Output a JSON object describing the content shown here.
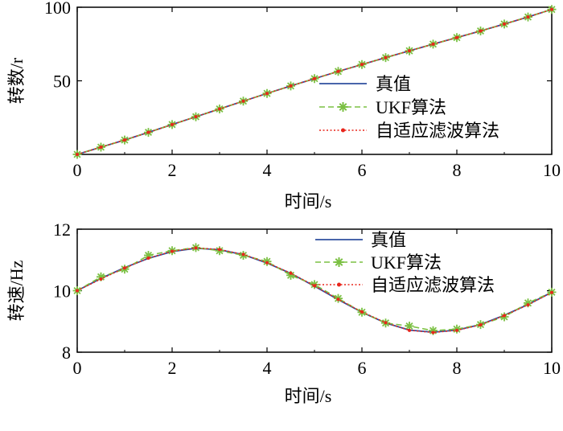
{
  "colors": {
    "true_value": "#2f4f9f",
    "ukf": "#7bc043",
    "adaptive": "#e8261c"
  },
  "chart_data": [
    {
      "type": "line",
      "xlabel": "时间/s",
      "ylabel": "转数/r",
      "xlim": [
        0,
        10
      ],
      "ylim": [
        0,
        100
      ],
      "xticks": [
        "0",
        "2",
        "4",
        "6",
        "8",
        "10"
      ],
      "yticks": [
        "50",
        "100"
      ],
      "legend_position": "center-right",
      "x": [
        0,
        0.5,
        1,
        1.5,
        2,
        2.5,
        3,
        3.5,
        4,
        4.5,
        5,
        5.5,
        6,
        6.5,
        7,
        7.5,
        8,
        8.5,
        9,
        9.5,
        10
      ],
      "series": [
        {
          "name": "真值",
          "style": "solid",
          "values": [
            0,
            4.9,
            9.8,
            15.0,
            20.3,
            25.6,
            30.9,
            36.2,
            41.4,
            46.5,
            51.5,
            56.4,
            61.1,
            65.8,
            70.4,
            74.9,
            79.4,
            83.9,
            88.6,
            93.4,
            98.5
          ]
        },
        {
          "name": "UKF算法",
          "style": "dashed-star",
          "values": [
            0,
            4.9,
            9.8,
            15.0,
            20.3,
            25.6,
            30.9,
            36.2,
            41.4,
            46.5,
            51.5,
            56.4,
            61.1,
            65.8,
            70.4,
            74.9,
            79.4,
            83.9,
            88.6,
            93.4,
            98.5
          ]
        },
        {
          "name": "自适应滤波算法",
          "style": "dotted-dot",
          "values": [
            0,
            4.9,
            9.8,
            15.0,
            20.3,
            25.6,
            30.9,
            36.2,
            41.4,
            46.5,
            51.5,
            56.4,
            61.1,
            65.8,
            70.4,
            74.9,
            79.4,
            83.9,
            88.6,
            93.4,
            98.5
          ]
        }
      ]
    },
    {
      "type": "line",
      "xlabel": "时间/s",
      "ylabel": "转速/Hz",
      "xlim": [
        0,
        10
      ],
      "ylim": [
        8,
        12
      ],
      "xticks": [
        "0",
        "2",
        "4",
        "6",
        "8",
        "10"
      ],
      "yticks": [
        "8",
        "10",
        "12"
      ],
      "legend_position": "top-right",
      "x": [
        0,
        0.5,
        1,
        1.5,
        2,
        2.5,
        3,
        3.5,
        4,
        4.5,
        5,
        5.5,
        6,
        6.5,
        7,
        7.5,
        8,
        8.5,
        9,
        9.5,
        10
      ],
      "series": [
        {
          "name": "真值",
          "style": "solid",
          "values": [
            10.0,
            10.4,
            10.75,
            11.05,
            11.27,
            11.38,
            11.33,
            11.17,
            10.9,
            10.56,
            10.15,
            9.71,
            9.3,
            8.95,
            8.72,
            8.65,
            8.72,
            8.9,
            9.2,
            9.55,
            9.95
          ]
        },
        {
          "name": "UKF算法",
          "style": "dashed-star",
          "values": [
            10.0,
            10.45,
            10.7,
            11.15,
            11.3,
            11.4,
            11.3,
            11.15,
            10.95,
            10.5,
            10.2,
            9.75,
            9.3,
            8.95,
            8.85,
            8.7,
            8.75,
            8.9,
            9.15,
            9.6,
            9.95
          ]
        },
        {
          "name": "自适应滤波算法",
          "style": "dotted-dot",
          "values": [
            10.0,
            10.38,
            10.74,
            11.06,
            11.28,
            11.39,
            11.34,
            11.18,
            10.91,
            10.57,
            10.16,
            9.72,
            9.31,
            8.96,
            8.71,
            8.64,
            8.71,
            8.89,
            9.19,
            9.54,
            9.94
          ]
        }
      ]
    }
  ]
}
